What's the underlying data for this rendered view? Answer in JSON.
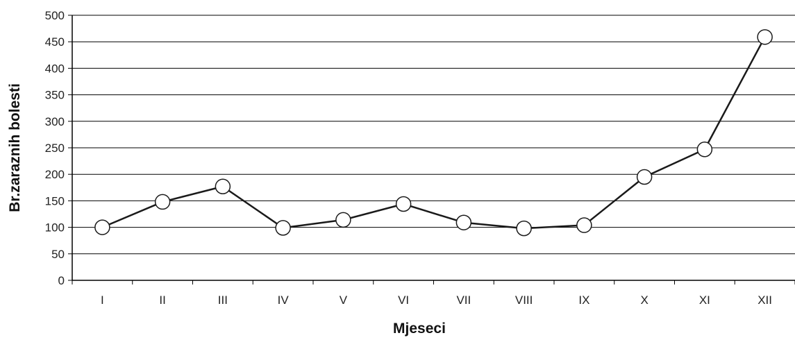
{
  "chart_data": {
    "type": "line",
    "title": "",
    "xlabel": "Mjeseci",
    "ylabel": "Br.zaraznih bolesti",
    "categories": [
      "I",
      "II",
      "III",
      "IV",
      "V",
      "VI",
      "VII",
      "VIII",
      "IX",
      "X",
      "XI",
      "XII"
    ],
    "series": [
      {
        "values": [
          100,
          148,
          177,
          99,
          114,
          144,
          109,
          98,
          104,
          195,
          247,
          459
        ]
      }
    ],
    "ylim": [
      0,
      500
    ],
    "yticks": [
      0,
      50,
      100,
      150,
      200,
      250,
      300,
      350,
      400,
      450,
      500
    ],
    "grid": "horizontal",
    "legend": "none",
    "colors": {
      "line": "#1a1a1a",
      "marker_fill": "#ffffff",
      "grid": "#000000"
    }
  }
}
